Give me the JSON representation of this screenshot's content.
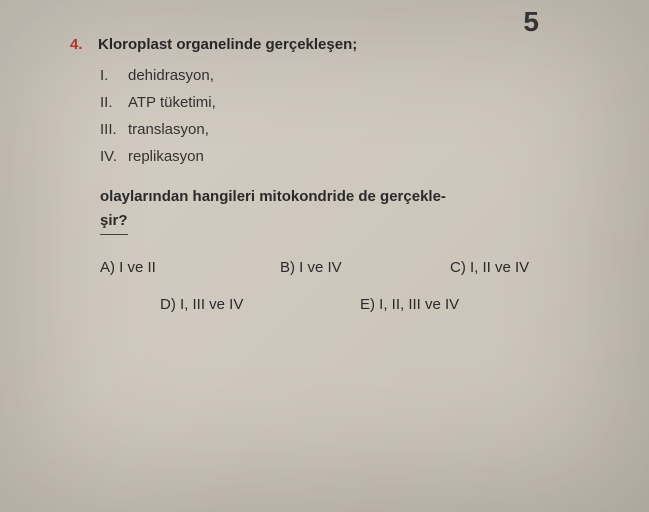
{
  "page_top_number": "5",
  "question": {
    "number": "4.",
    "prompt": "Kloroplast organelinde gerçekleşen;",
    "items": [
      {
        "num": "I.",
        "text": "dehidrasyon,"
      },
      {
        "num": "II.",
        "text": "ATP tüketimi,"
      },
      {
        "num": "III.",
        "text": "translasyon,"
      },
      {
        "num": "IV.",
        "text": "replikasyon"
      }
    ],
    "sub_prompt_line1": "olaylarından hangileri mitokondride de gerçekle-",
    "sub_prompt_line2": "şir?",
    "options": {
      "a": "A) I ve II",
      "b": "B) I ve IV",
      "c": "C) I, II ve IV",
      "d": "D) I, III ve IV",
      "e": "E) I, II, III ve IV"
    }
  }
}
